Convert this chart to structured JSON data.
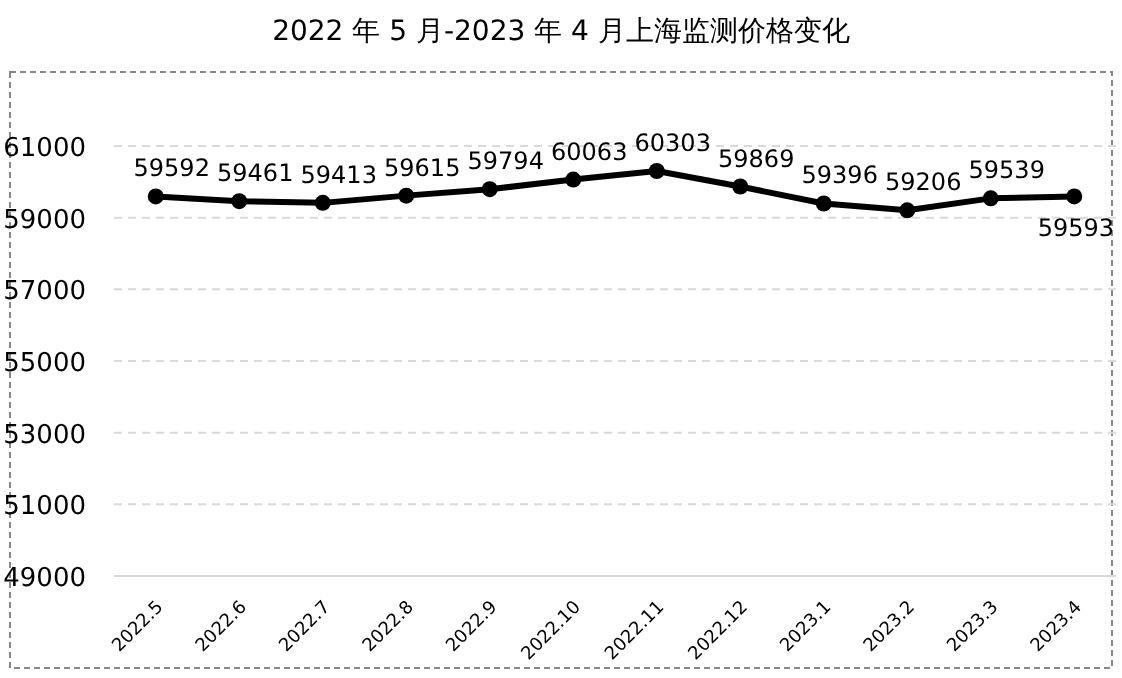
{
  "chart_data": {
    "type": "line",
    "title": "2022 年 5 月-2023 年 4 月上海监测价格变化",
    "categories": [
      "2022.5",
      "2022.6",
      "2022.7",
      "2022.8",
      "2022.9",
      "2022.10",
      "2022.11",
      "2022.12",
      "2023.1",
      "2023.2",
      "2023.3",
      "2023.4"
    ],
    "series": [
      {
        "color": "#000000",
        "values": [
          59592,
          59461,
          59413,
          59615,
          59794,
          60063,
          60303,
          59869,
          59396,
          59206,
          59539,
          59593
        ]
      }
    ],
    "ylim": [
      49000,
      61000
    ],
    "yticks": [
      49000,
      51000,
      53000,
      55000,
      57000,
      59000,
      61000
    ],
    "grid": "y",
    "marker": "circle",
    "line_style": "solid",
    "data_labels": true
  }
}
